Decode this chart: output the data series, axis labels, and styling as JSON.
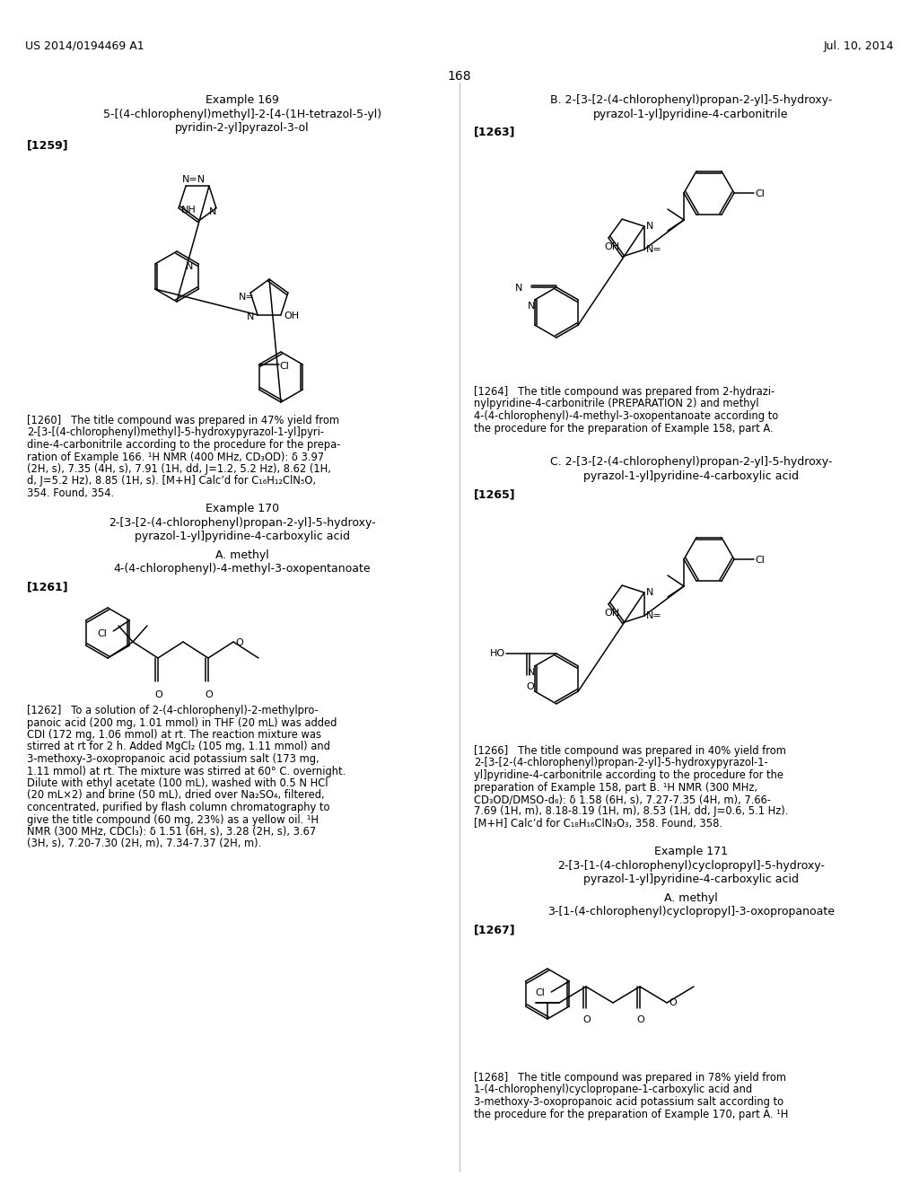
{
  "bg_color": "#ffffff",
  "header_left": "US 2014/0194469 A1",
  "header_right": "Jul. 10, 2014",
  "page_number": "168"
}
